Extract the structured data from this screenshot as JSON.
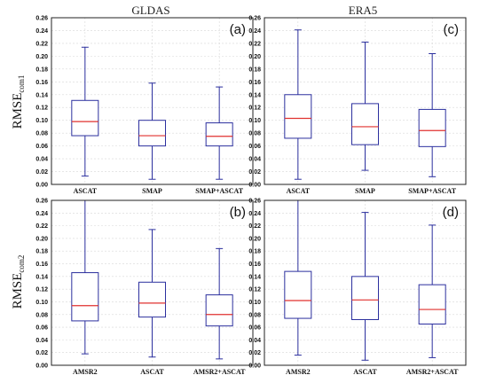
{
  "figure": {
    "column_titles": [
      "GLDAS",
      "ERA5"
    ],
    "row_labels": [
      {
        "main": "RMSE",
        "sub": "com1"
      },
      {
        "main": "RMSE",
        "sub": "com2"
      }
    ]
  },
  "colors": {
    "box": "#2b2f9e",
    "median": "#e0312f",
    "grid": "#d8d8d8",
    "axis": "#222222"
  },
  "chart_data": [
    {
      "panel": "(a)",
      "type": "boxplot",
      "ylim": [
        0,
        0.26
      ],
      "ytick_step": 0.02,
      "categories": [
        "ASCAT",
        "SMAP",
        "SMAP+ASCAT"
      ],
      "boxes": [
        {
          "min": 0.013,
          "q1": 0.076,
          "median": 0.098,
          "q3": 0.131,
          "max": 0.214
        },
        {
          "min": 0.008,
          "q1": 0.06,
          "median": 0.076,
          "q3": 0.1,
          "max": 0.158
        },
        {
          "min": 0.008,
          "q1": 0.06,
          "median": 0.075,
          "q3": 0.096,
          "max": 0.152
        }
      ]
    },
    {
      "panel": "(c)",
      "type": "boxplot",
      "ylim": [
        0,
        0.26
      ],
      "ytick_step": 0.02,
      "categories": [
        "ASCAT",
        "SMAP",
        "SMAP+ASCAT"
      ],
      "boxes": [
        {
          "min": 0.008,
          "q1": 0.072,
          "median": 0.103,
          "q3": 0.14,
          "max": 0.241
        },
        {
          "min": 0.022,
          "q1": 0.062,
          "median": 0.09,
          "q3": 0.126,
          "max": 0.222
        },
        {
          "min": 0.012,
          "q1": 0.059,
          "median": 0.084,
          "q3": 0.117,
          "max": 0.204
        }
      ]
    },
    {
      "panel": "(b)",
      "type": "boxplot",
      "ylim": [
        0,
        0.26
      ],
      "ytick_step": 0.02,
      "categories": [
        "AMSR2",
        "ASCAT",
        "AMSR2+ASCAT"
      ],
      "boxes": [
        {
          "min": 0.018,
          "q1": 0.07,
          "median": 0.094,
          "q3": 0.146,
          "max": 0.26
        },
        {
          "min": 0.013,
          "q1": 0.076,
          "median": 0.098,
          "q3": 0.131,
          "max": 0.214
        },
        {
          "min": 0.01,
          "q1": 0.062,
          "median": 0.08,
          "q3": 0.111,
          "max": 0.184
        }
      ]
    },
    {
      "panel": "(d)",
      "type": "boxplot",
      "ylim": [
        0,
        0.26
      ],
      "ytick_step": 0.02,
      "categories": [
        "AMSR2",
        "ASCAT",
        "AMSR2+ASCAT"
      ],
      "boxes": [
        {
          "min": 0.016,
          "q1": 0.074,
          "median": 0.102,
          "q3": 0.148,
          "max": 0.26
        },
        {
          "min": 0.008,
          "q1": 0.072,
          "median": 0.103,
          "q3": 0.14,
          "max": 0.241
        },
        {
          "min": 0.012,
          "q1": 0.065,
          "median": 0.088,
          "q3": 0.127,
          "max": 0.221
        }
      ]
    }
  ]
}
